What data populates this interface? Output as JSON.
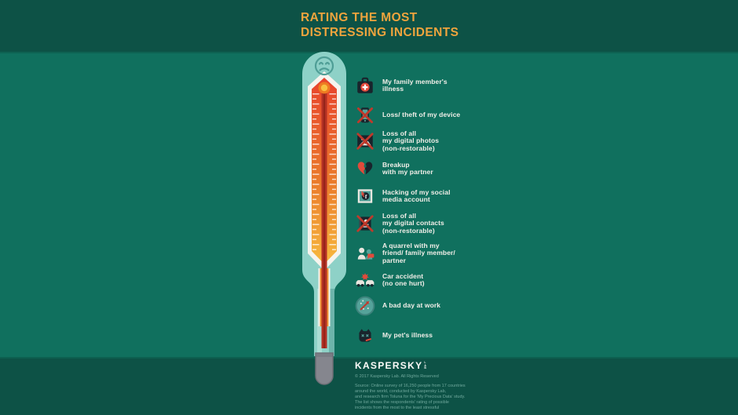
{
  "header": {
    "title": "RATING THE MOST\nDISTRESSING INCIDENTS"
  },
  "thermometer": {
    "mood": "sad-face",
    "scale_top_color": "#e8432d",
    "scale_mid_color": "#ea7a2b",
    "scale_bottom_color": "#f7b93e",
    "mercury_color": "#b23024",
    "body_color": "#8ed1c7",
    "bulb_color": "#85868e"
  },
  "incidents": [
    {
      "icon": "first-aid-kit-icon",
      "label": "My family member's\nillness"
    },
    {
      "icon": "crossed-device-icon",
      "label": "Loss/ theft of my device"
    },
    {
      "icon": "crossed-photos-icon",
      "label": "Loss of all\nmy digital photos\n(non-restorable)"
    },
    {
      "icon": "broken-heart-icon",
      "label": "Breakup\nwith my partner"
    },
    {
      "icon": "hacked-account-icon",
      "label": "Hacking of my social\nmedia account"
    },
    {
      "icon": "crossed-contacts-icon",
      "label": "Loss of all\nmy digital contacts\n(non-restorable)"
    },
    {
      "icon": "quarrel-icon",
      "label": "A quarrel with my\nfriend/ family member/\npartner"
    },
    {
      "icon": "car-accident-icon",
      "label": "Car accident\n(no one hurt)"
    },
    {
      "icon": "bad-day-icon",
      "label": "A bad day at work"
    },
    {
      "icon": "pet-illness-icon",
      "label": "My pet's illness"
    }
  ],
  "footer": {
    "logo": "KASPERSKY",
    "logo_mark": "LAB",
    "copyright": "© 2017 Kaspersky Lab. All Rights Reserved",
    "source": "Source: Online survey of 16,250 people from 17 countries\naround the world, conducted by Kaspersky Lab,\nand research firm Toluna for the 'My Precious Data' study.\nThe list shows the respondents' rating of possible\nincidents from the most to the least stressful"
  },
  "colors": {
    "header_bg": "#0d5246",
    "main_bg": "#10705e",
    "accent_orange": "#efa43d",
    "text_white": "#f2efe9",
    "muted_text": "#6fa89c",
    "icon_dark": "#19242c",
    "icon_red": "#e24a3b",
    "icon_teal": "#55a39a",
    "cross_red": "#c0392b"
  }
}
